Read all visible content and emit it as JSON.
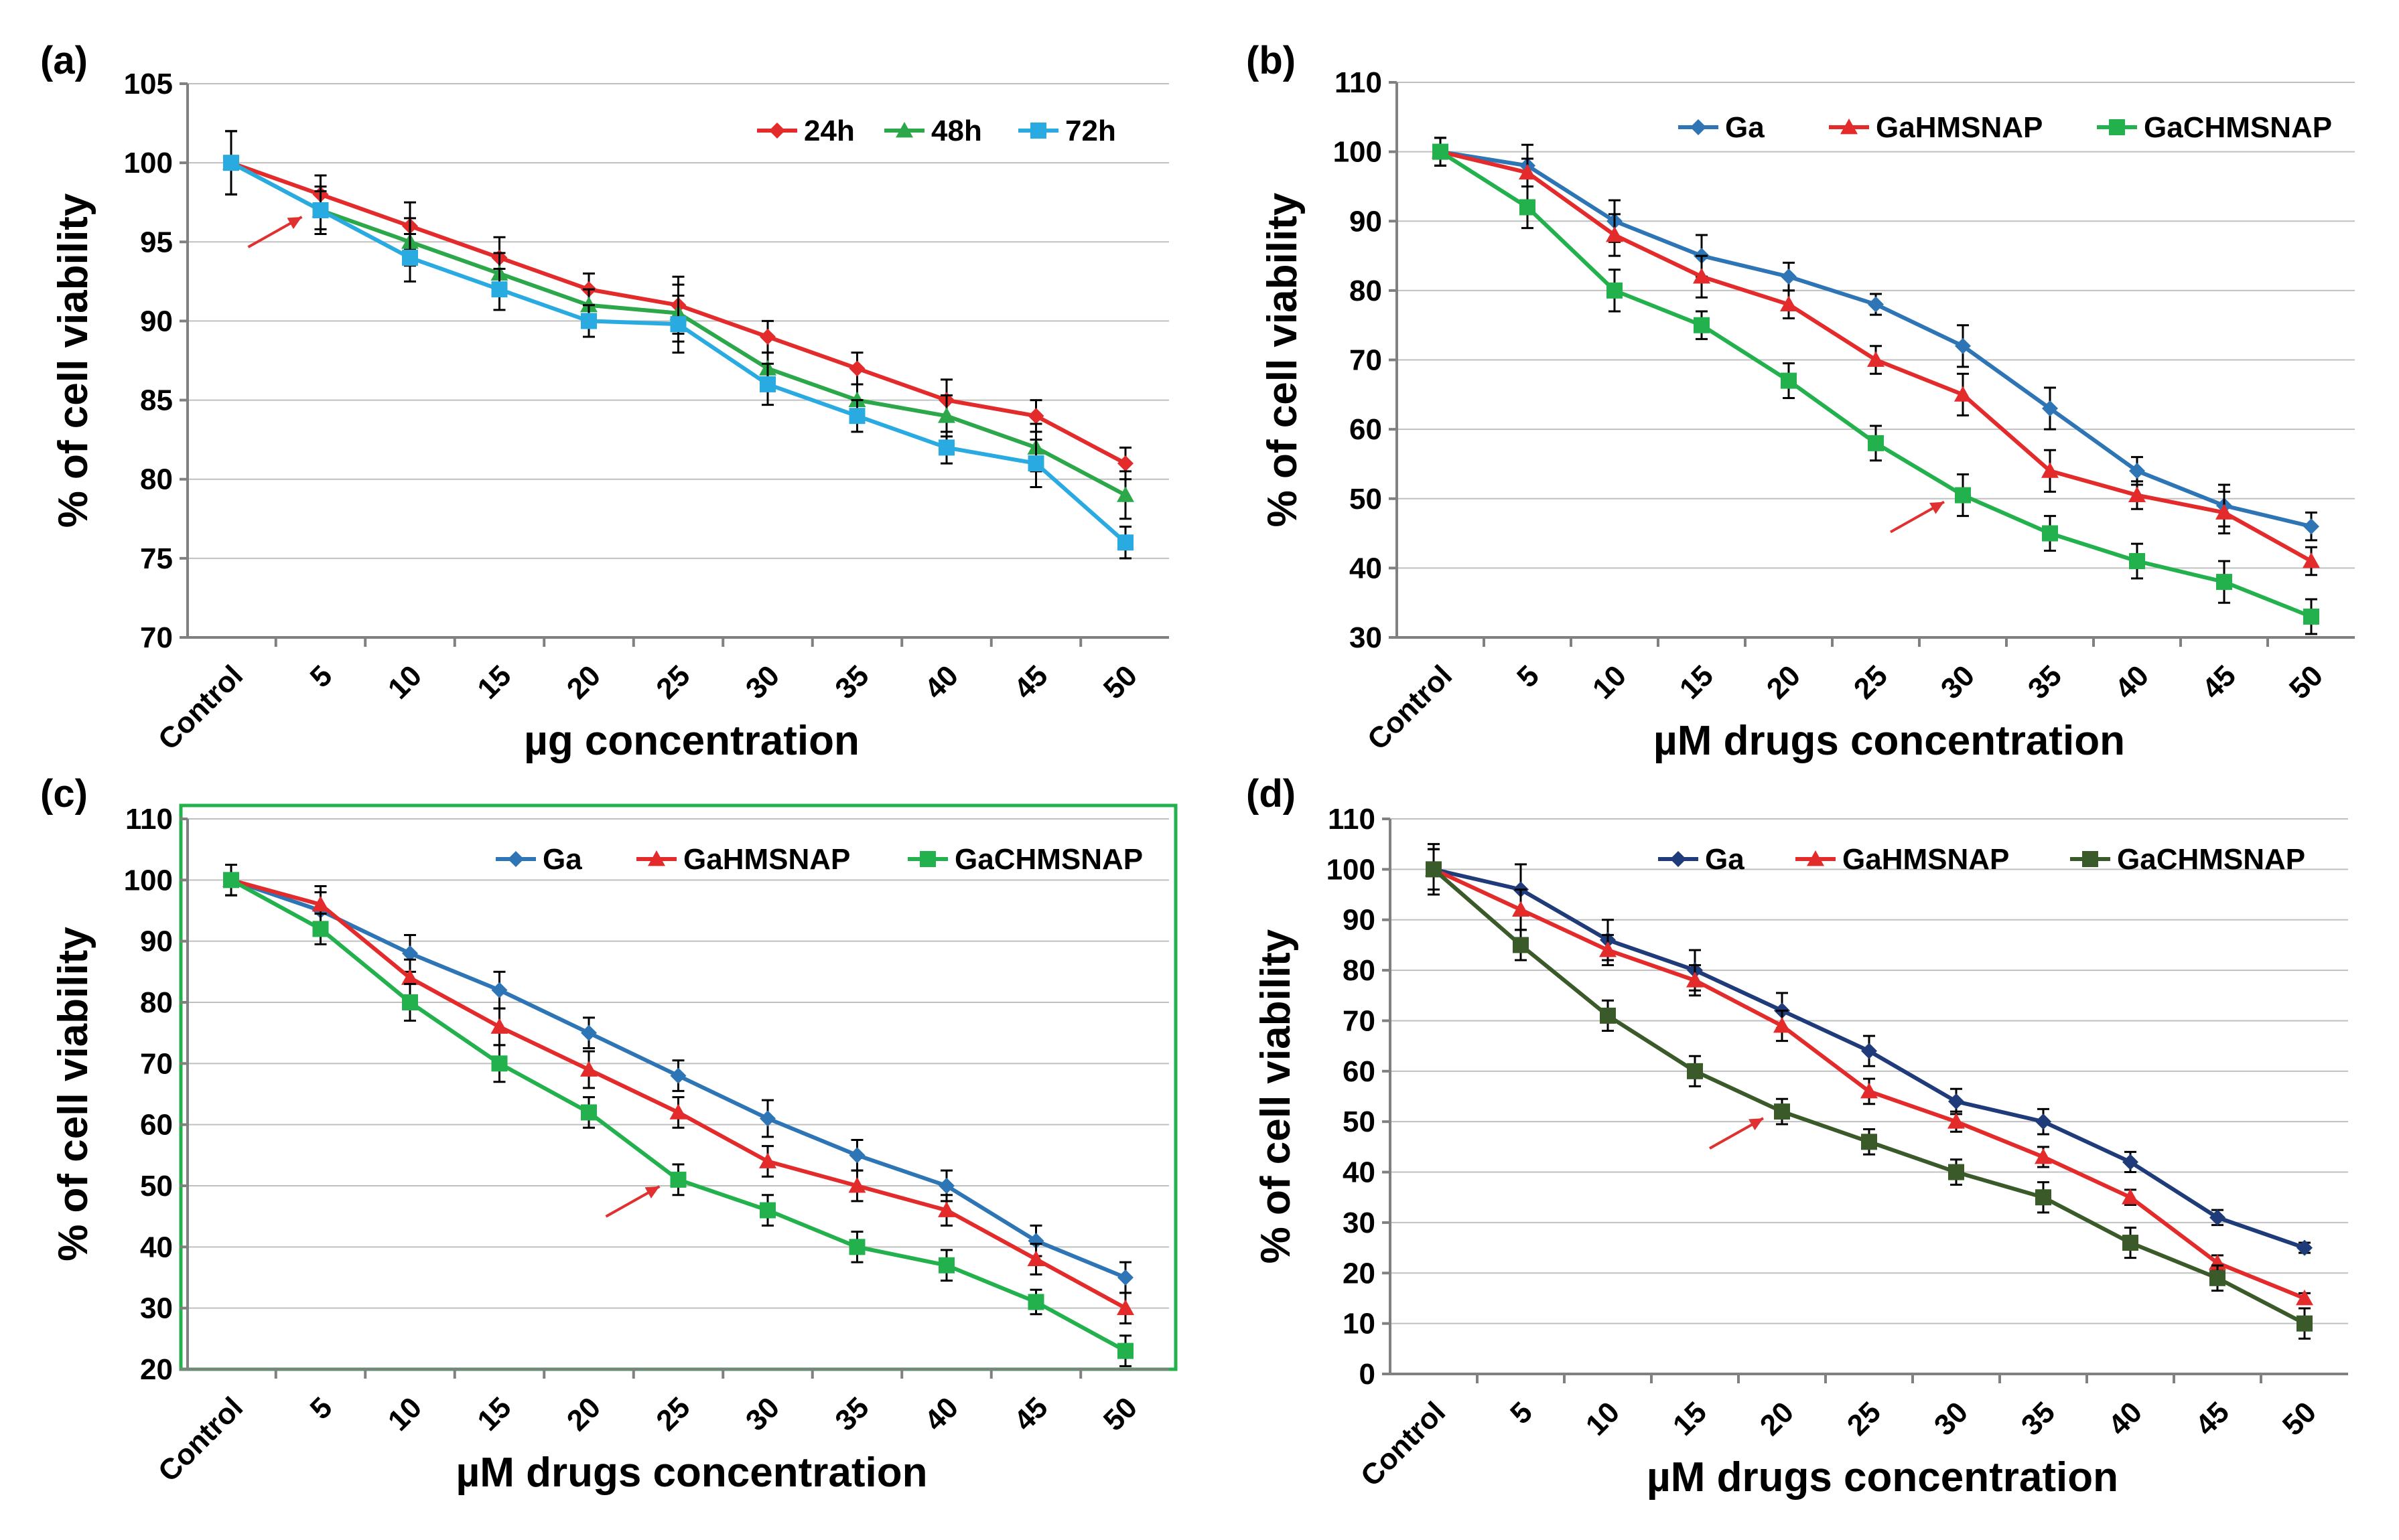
{
  "chart_data": [
    {
      "type": "line",
      "panel_label": "(a)",
      "categories": [
        "Control",
        "5",
        "10",
        "15",
        "20",
        "25",
        "30",
        "35",
        "40",
        "45",
        "50"
      ],
      "xlabel": "µg concentration",
      "ylabel": "% of cell viability",
      "ylim": [
        70,
        105
      ],
      "ystep": 5,
      "grid": true,
      "border": false,
      "legend_position": "top-right",
      "arrow_point": {
        "series": "72h",
        "category": "5"
      },
      "series": [
        {
          "name": "24h",
          "color": "#e32b2b",
          "marker": "diamond",
          "values": [
            100,
            98,
            96,
            94,
            92,
            91,
            89,
            87,
            85,
            84,
            81
          ],
          "errors": [
            2,
            1.2,
            1.5,
            1.3,
            1,
            1.8,
            1,
            1,
            1.3,
            1,
            1
          ]
        },
        {
          "name": "48h",
          "color": "#2ca84a",
          "marker": "triangle",
          "values": [
            100,
            97,
            95,
            93,
            91,
            90.5,
            87,
            85,
            84,
            82,
            79
          ],
          "errors": [
            2,
            1.2,
            1.5,
            1.3,
            1,
            1.8,
            1,
            1,
            1.3,
            1.5,
            1.5
          ]
        },
        {
          "name": "72h",
          "color": "#29abe2",
          "marker": "square",
          "values": [
            100,
            97,
            94,
            92,
            90,
            89.8,
            86,
            84,
            82,
            81,
            76
          ],
          "errors": [
            2,
            1.5,
            1.5,
            1.3,
            1,
            1.8,
            1.3,
            1,
            1,
            1.5,
            1
          ]
        }
      ]
    },
    {
      "type": "line",
      "panel_label": "(b)",
      "categories": [
        "Control",
        "5",
        "10",
        "15",
        "20",
        "25",
        "30",
        "35",
        "40",
        "45",
        "50"
      ],
      "xlabel": "µM drugs concentration",
      "ylabel": "% of cell viability",
      "ylim": [
        30,
        110
      ],
      "ystep": 10,
      "grid": true,
      "border": false,
      "legend_position": "top",
      "arrow_point": {
        "series": "GaCHMSNAP",
        "category": "30"
      },
      "series": [
        {
          "name": "Ga",
          "color": "#2e75b6",
          "marker": "diamond",
          "values": [
            100,
            98,
            90,
            85,
            82,
            78,
            72,
            63,
            54,
            49,
            46
          ],
          "errors": [
            2,
            3,
            3,
            3,
            2,
            1.5,
            3,
            3,
            2,
            3,
            2
          ]
        },
        {
          "name": "GaHMSNAP",
          "color": "#e32b2b",
          "marker": "triangle",
          "values": [
            100,
            97,
            88,
            82,
            78,
            70,
            65,
            54,
            50.5,
            48,
            41
          ],
          "errors": [
            2,
            2,
            3,
            3,
            2,
            2,
            3,
            3,
            2,
            3,
            2
          ]
        },
        {
          "name": "GaCHMSNAP",
          "color": "#22b14c",
          "marker": "square",
          "values": [
            100,
            92,
            80,
            75,
            67,
            58,
            50.5,
            45,
            41,
            38,
            33
          ],
          "errors": [
            2,
            3,
            3,
            2,
            2.5,
            2.5,
            3,
            2.5,
            2.5,
            3,
            2.5
          ]
        }
      ]
    },
    {
      "type": "line",
      "panel_label": "(c)",
      "categories": [
        "Control",
        "5",
        "10",
        "15",
        "20",
        "25",
        "30",
        "35",
        "40",
        "45",
        "50"
      ],
      "xlabel": "µM drugs concentration",
      "ylabel": "% of cell viability",
      "ylim": [
        20,
        110
      ],
      "ystep": 10,
      "grid": true,
      "border": true,
      "border_color": "#22b14c",
      "legend_position": "top",
      "arrow_point": {
        "series": "GaCHMSNAP",
        "category": "25"
      },
      "series": [
        {
          "name": "Ga",
          "color": "#2e75b6",
          "marker": "diamond",
          "values": [
            100,
            95,
            88,
            82,
            75,
            68,
            61,
            55,
            50,
            41,
            35
          ],
          "errors": [
            2.5,
            3,
            3,
            3,
            2.5,
            2.5,
            3,
            2.5,
            2.5,
            2.5,
            2.5
          ]
        },
        {
          "name": "GaHMSNAP",
          "color": "#e32b2b",
          "marker": "triangle",
          "values": [
            100,
            96,
            84,
            76,
            69,
            62,
            54,
            50,
            46,
            38,
            30
          ],
          "errors": [
            2.5,
            3,
            3,
            3,
            3,
            2.5,
            2.5,
            2.5,
            2.5,
            2.5,
            2.5
          ]
        },
        {
          "name": "GaCHMSNAP",
          "color": "#22b14c",
          "marker": "square",
          "values": [
            100,
            92,
            80,
            70,
            62,
            51,
            46,
            40,
            37,
            31,
            23
          ],
          "errors": [
            2.5,
            2.5,
            3,
            3,
            2.5,
            2.5,
            2.5,
            2.5,
            2.5,
            2,
            2.5
          ]
        }
      ]
    },
    {
      "type": "line",
      "panel_label": "(d)",
      "categories": [
        "Control",
        "5",
        "10",
        "15",
        "20",
        "25",
        "30",
        "35",
        "40",
        "45",
        "50"
      ],
      "xlabel": "µM drugs concentration",
      "ylabel": "% of cell viability",
      "ylim": [
        0,
        110
      ],
      "ystep": 10,
      "grid": true,
      "border": false,
      "legend_position": "top",
      "arrow_point": {
        "series": "GaCHMSNAP",
        "category": "20"
      },
      "series": [
        {
          "name": "Ga",
          "color": "#1f3b7a",
          "marker": "diamond",
          "values": [
            100,
            96,
            86,
            80,
            72,
            64,
            54,
            50,
            42,
            31,
            25
          ],
          "errors": [
            4,
            5,
            4,
            4,
            3.5,
            3,
            2.5,
            2.5,
            2,
            1.5,
            1
          ]
        },
        {
          "name": "GaHMSNAP",
          "color": "#e32b2b",
          "marker": "triangle",
          "values": [
            100,
            92,
            84,
            78,
            69,
            56,
            50,
            43,
            35,
            22,
            15
          ],
          "errors": [
            4,
            4,
            3,
            3,
            3,
            2.5,
            2,
            2,
            1.5,
            1.5,
            1
          ]
        },
        {
          "name": "GaCHMSNAP",
          "color": "#3b5a2a",
          "marker": "square",
          "values": [
            100,
            85,
            71,
            60,
            52,
            46,
            40,
            35,
            26,
            19,
            10
          ],
          "errors": [
            5,
            3,
            3,
            3,
            2.5,
            2.5,
            2.5,
            3,
            3,
            2.5,
            3
          ]
        }
      ]
    }
  ]
}
